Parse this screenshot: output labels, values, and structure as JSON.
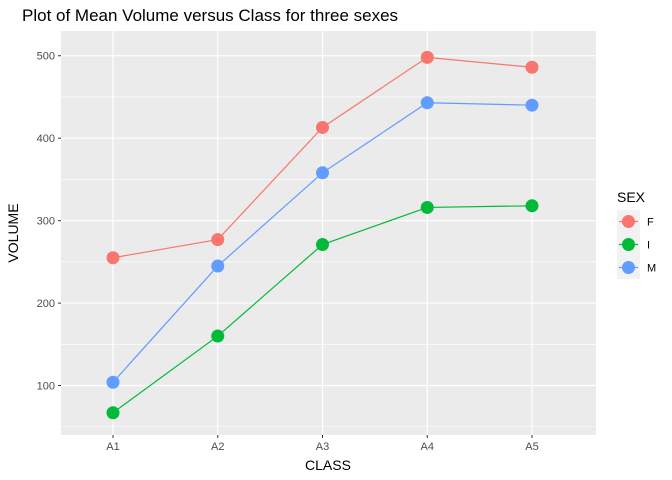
{
  "chart_data": {
    "type": "line",
    "title": "Plot of Mean Volume versus Class for three sexes",
    "xlabel": "CLASS",
    "ylabel": "VOLUME",
    "categories": [
      "A1",
      "A2",
      "A3",
      "A4",
      "A5"
    ],
    "ylim": [
      40,
      530
    ],
    "yticks": [
      100,
      200,
      300,
      400,
      500
    ],
    "grid": true,
    "legend": {
      "title": "SEX",
      "position": "right"
    },
    "series": [
      {
        "name": "F",
        "color": "#F8766D",
        "values": [
          255,
          277,
          413,
          498,
          486
        ]
      },
      {
        "name": "I",
        "color": "#00BA38",
        "values": [
          67,
          160,
          271,
          316,
          318
        ]
      },
      {
        "name": "M",
        "color": "#619CFF",
        "values": [
          104,
          245,
          358,
          443,
          440
        ]
      }
    ]
  }
}
